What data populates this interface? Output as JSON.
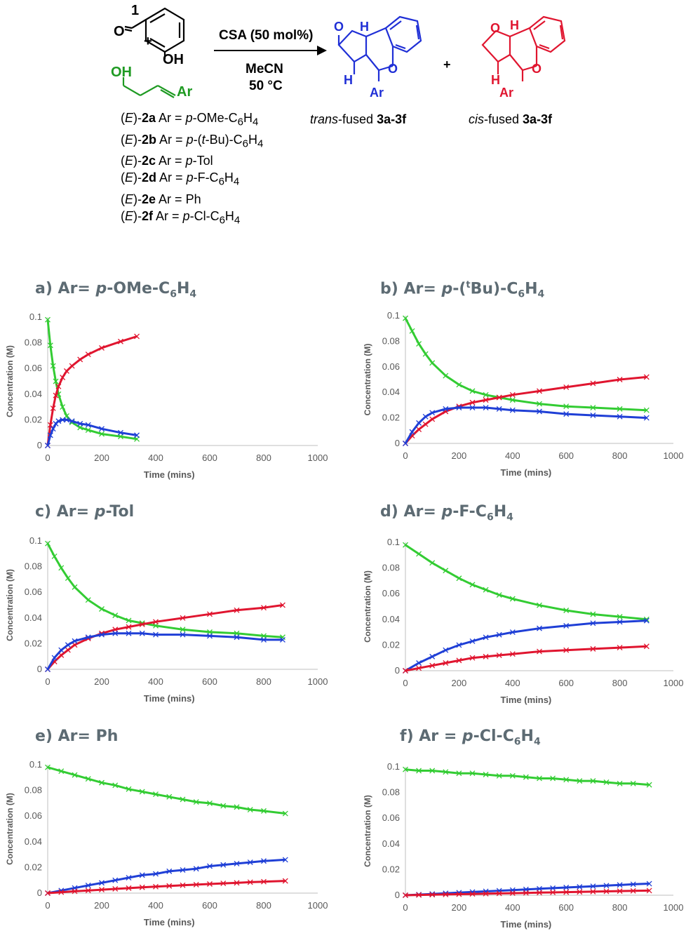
{
  "scheme": {
    "label_1": "1",
    "aldehyde_O": "O",
    "phenol_OH": "OH",
    "plus_1": "+",
    "alcohol_OH": "OH",
    "alcohol_Ar": "Ar",
    "reagent": "CSA (50 mol%)",
    "solvent": "MeCN",
    "temp": "50 °C",
    "plus_2": "+",
    "trans_label_italic": "trans",
    "trans_label_rest": "-fused ",
    "trans_label_bold": "3a-3f",
    "cis_label_italic": "cis",
    "cis_label_rest": "-fused ",
    "cis_label_bold": "3a-3f",
    "substrates": [
      {
        "pre": "(",
        "E": "E",
        "mid": ")-",
        "id": "2a",
        "ar": " Ar = ",
        "ital": "p",
        "rest": "-OMe-C",
        "sub": "6",
        "rest2": "H",
        "sub2": "4"
      },
      {
        "pre": "(",
        "E": "E",
        "mid": ")-",
        "id": "2b",
        "ar": " Ar = ",
        "ital": "p",
        "rest": "-(",
        "ital2": "t",
        "rest1b": "-Bu)-C",
        "sub": "6",
        "rest2": "H",
        "sub2": "4"
      },
      {
        "pre": "(",
        "E": "E",
        "mid": ")-",
        "id": "2c",
        "ar": " Ar = ",
        "ital": "p",
        "rest": "-Tol"
      },
      {
        "pre": "(",
        "E": "E",
        "mid": ")-",
        "id": "2d",
        "ar": " Ar = ",
        "ital": "p",
        "rest": "-F-C",
        "sub": "6",
        "rest2": "H",
        "sub2": "4"
      },
      {
        "pre": "(",
        "E": "E",
        "mid": ")-",
        "id": "2e",
        "ar": " Ar = ",
        "rest": "Ph"
      },
      {
        "pre": "(",
        "E": "E",
        "mid": ")-",
        "id": "2f",
        "ar": " Ar = ",
        "ital": "p",
        "rest": "-Cl-C",
        "sub": "6",
        "rest2": "H",
        "sub2": "4"
      }
    ],
    "trans_atoms": {
      "O1": "O",
      "H1": "H",
      "O2": "O",
      "H2": "H",
      "Ar": "Ar"
    },
    "cis_atoms": {
      "O1": "O",
      "H1": "H",
      "O2": "O",
      "H2": "H",
      "Ar": "Ar"
    },
    "colors": {
      "trans": "#1f2fd6",
      "cis": "#e0152f",
      "alcohol": "#1e9a22"
    }
  },
  "chart_data": [
    {
      "panel": "a",
      "title_pre": "a) Ar= ",
      "title_ital": "p",
      "title_rest": "-OMe-C",
      "title_sub1": "6",
      "title_mid": "H",
      "title_sub2": "4",
      "type": "scatter",
      "xlabel": "Time (mins)",
      "ylabel": "Concentration (M)",
      "xlim": [
        0,
        1000
      ],
      "ylim": [
        0,
        0.1
      ],
      "xticks": [
        "0",
        "200",
        "400",
        "600",
        "800",
        "1000"
      ],
      "yticks": [
        "0",
        "0.02",
        "0.04",
        "0.06",
        "0.08",
        "0.1"
      ],
      "series": [
        {
          "color": "#33cc33",
          "x": [
            0,
            10,
            20,
            30,
            40,
            55,
            70,
            90,
            120,
            150,
            200,
            270,
            330
          ],
          "y": [
            0.098,
            0.078,
            0.062,
            0.05,
            0.04,
            0.03,
            0.023,
            0.018,
            0.014,
            0.012,
            0.009,
            0.007,
            0.005
          ]
        },
        {
          "color": "#e0152f",
          "x": [
            0,
            10,
            20,
            30,
            40,
            55,
            70,
            90,
            120,
            150,
            200,
            270,
            330
          ],
          "y": [
            0.0,
            0.016,
            0.029,
            0.039,
            0.046,
            0.053,
            0.058,
            0.062,
            0.067,
            0.071,
            0.076,
            0.081,
            0.085
          ]
        },
        {
          "color": "#1f3fd6",
          "x": [
            0,
            10,
            20,
            30,
            40,
            55,
            70,
            90,
            120,
            150,
            200,
            270,
            330
          ],
          "y": [
            0.0,
            0.008,
            0.013,
            0.017,
            0.019,
            0.02,
            0.02,
            0.019,
            0.017,
            0.016,
            0.013,
            0.01,
            0.008
          ]
        }
      ]
    },
    {
      "panel": "b",
      "title_pre": "b) Ar= ",
      "title_ital": "p",
      "title_rest": "-(",
      "title_sup": "t",
      "title_rest2": "Bu)-C",
      "title_sub1": "6",
      "title_mid": "H",
      "title_sub2": "4",
      "type": "scatter",
      "xlabel": "Time (mins)",
      "ylabel": "Concentration (M)",
      "xlim": [
        0,
        1000
      ],
      "ylim": [
        0,
        0.1
      ],
      "xticks": [
        "0",
        "200",
        "400",
        "600",
        "800",
        "1000"
      ],
      "yticks": [
        "0",
        "0.02",
        "0.04",
        "0.06",
        "0.08",
        "0.1"
      ],
      "series": [
        {
          "color": "#33cc33",
          "x": [
            0,
            25,
            50,
            75,
            100,
            150,
            200,
            250,
            300,
            350,
            400,
            500,
            600,
            700,
            800,
            900
          ],
          "y": [
            0.098,
            0.088,
            0.078,
            0.07,
            0.063,
            0.053,
            0.046,
            0.041,
            0.038,
            0.036,
            0.034,
            0.031,
            0.029,
            0.028,
            0.027,
            0.026
          ]
        },
        {
          "color": "#e0152f",
          "x": [
            0,
            25,
            50,
            75,
            100,
            150,
            200,
            250,
            300,
            350,
            400,
            500,
            600,
            700,
            800,
            900
          ],
          "y": [
            0.0,
            0.006,
            0.011,
            0.015,
            0.019,
            0.025,
            0.029,
            0.032,
            0.034,
            0.036,
            0.038,
            0.041,
            0.044,
            0.047,
            0.05,
            0.052
          ]
        },
        {
          "color": "#1f3fd6",
          "x": [
            0,
            25,
            50,
            75,
            100,
            150,
            200,
            250,
            300,
            350,
            400,
            500,
            600,
            700,
            800,
            900
          ],
          "y": [
            0.0,
            0.009,
            0.016,
            0.021,
            0.024,
            0.027,
            0.028,
            0.028,
            0.028,
            0.027,
            0.026,
            0.025,
            0.023,
            0.022,
            0.021,
            0.02
          ]
        }
      ]
    },
    {
      "panel": "c",
      "title_pre": "c) Ar= ",
      "title_ital": "p",
      "title_rest": "-Tol",
      "type": "scatter",
      "xlabel": "Time (mins)",
      "ylabel": "Concentration (M)",
      "xlim": [
        0,
        1000
      ],
      "ylim": [
        0,
        0.1
      ],
      "xticks": [
        "0",
        "200",
        "400",
        "600",
        "800",
        "1000"
      ],
      "yticks": [
        "0",
        "0.02",
        "0.04",
        "0.06",
        "0.08",
        "0.1"
      ],
      "series": [
        {
          "color": "#33cc33",
          "x": [
            0,
            25,
            50,
            75,
            100,
            150,
            200,
            250,
            300,
            350,
            400,
            500,
            600,
            700,
            800,
            870
          ],
          "y": [
            0.098,
            0.088,
            0.079,
            0.071,
            0.064,
            0.054,
            0.047,
            0.042,
            0.038,
            0.036,
            0.034,
            0.031,
            0.029,
            0.028,
            0.026,
            0.025
          ]
        },
        {
          "color": "#e0152f",
          "x": [
            0,
            25,
            50,
            75,
            100,
            150,
            200,
            250,
            300,
            350,
            400,
            500,
            600,
            700,
            800,
            870
          ],
          "y": [
            0.0,
            0.006,
            0.011,
            0.015,
            0.019,
            0.024,
            0.028,
            0.031,
            0.033,
            0.035,
            0.037,
            0.04,
            0.043,
            0.046,
            0.048,
            0.05
          ]
        },
        {
          "color": "#1f3fd6",
          "x": [
            0,
            25,
            50,
            75,
            100,
            150,
            200,
            250,
            300,
            350,
            400,
            500,
            600,
            700,
            800,
            870
          ],
          "y": [
            0.0,
            0.009,
            0.015,
            0.019,
            0.022,
            0.025,
            0.027,
            0.028,
            0.028,
            0.028,
            0.027,
            0.027,
            0.026,
            0.025,
            0.023,
            0.023
          ]
        }
      ]
    },
    {
      "panel": "d",
      "title_pre": "d) Ar= ",
      "title_ital": "p",
      "title_rest": "-F-C",
      "title_sub1": "6",
      "title_mid": "H",
      "title_sub2": "4",
      "type": "scatter",
      "xlabel": "Time (mins)",
      "ylabel": "Concentration (M)",
      "xlim": [
        0,
        1000
      ],
      "ylim": [
        0,
        0.1
      ],
      "xticks": [
        "0",
        "200",
        "400",
        "600",
        "800",
        "1000"
      ],
      "yticks": [
        "0",
        "0.02",
        "0.04",
        "0.06",
        "0.08",
        "0.1"
      ],
      "series": [
        {
          "color": "#33cc33",
          "x": [
            0,
            50,
            100,
            150,
            200,
            250,
            300,
            350,
            400,
            500,
            600,
            700,
            800,
            900
          ],
          "y": [
            0.098,
            0.091,
            0.084,
            0.078,
            0.072,
            0.067,
            0.063,
            0.059,
            0.056,
            0.051,
            0.047,
            0.044,
            0.042,
            0.04
          ]
        },
        {
          "color": "#1f3fd6",
          "x": [
            0,
            50,
            100,
            150,
            200,
            250,
            300,
            350,
            400,
            500,
            600,
            700,
            800,
            900
          ],
          "y": [
            0.0,
            0.006,
            0.011,
            0.016,
            0.02,
            0.023,
            0.026,
            0.028,
            0.03,
            0.033,
            0.035,
            0.037,
            0.038,
            0.039
          ]
        },
        {
          "color": "#e0152f",
          "x": [
            0,
            50,
            100,
            150,
            200,
            250,
            300,
            350,
            400,
            500,
            600,
            700,
            800,
            900
          ],
          "y": [
            0.0,
            0.002,
            0.004,
            0.006,
            0.008,
            0.01,
            0.011,
            0.012,
            0.013,
            0.015,
            0.016,
            0.017,
            0.018,
            0.019
          ]
        }
      ]
    },
    {
      "panel": "e",
      "title_pre": "e) Ar= ",
      "title_rest": "Ph",
      "type": "scatter",
      "xlabel": "Time (mins)",
      "ylabel": "Concentration (M)",
      "xlim": [
        0,
        1000
      ],
      "ylim": [
        0,
        0.1
      ],
      "xticks": [
        "0",
        "200",
        "400",
        "600",
        "800",
        "1000"
      ],
      "yticks": [
        "0",
        "0.02",
        "0.04",
        "0.06",
        "0.08",
        "0.1"
      ],
      "series": [
        {
          "color": "#33cc33",
          "x": [
            0,
            50,
            100,
            150,
            200,
            250,
            300,
            350,
            400,
            450,
            500,
            550,
            600,
            650,
            700,
            750,
            800,
            880
          ],
          "y": [
            0.098,
            0.095,
            0.092,
            0.089,
            0.086,
            0.084,
            0.081,
            0.079,
            0.077,
            0.075,
            0.073,
            0.071,
            0.07,
            0.068,
            0.067,
            0.065,
            0.064,
            0.062
          ]
        },
        {
          "color": "#1f3fd6",
          "x": [
            0,
            50,
            100,
            150,
            200,
            250,
            300,
            350,
            400,
            450,
            500,
            550,
            600,
            650,
            700,
            750,
            800,
            880
          ],
          "y": [
            0.0,
            0.002,
            0.004,
            0.006,
            0.008,
            0.01,
            0.012,
            0.014,
            0.015,
            0.017,
            0.018,
            0.019,
            0.021,
            0.022,
            0.023,
            0.024,
            0.025,
            0.026
          ]
        },
        {
          "color": "#e0152f",
          "x": [
            0,
            50,
            100,
            150,
            200,
            250,
            300,
            350,
            400,
            450,
            500,
            550,
            600,
            650,
            700,
            750,
            800,
            880
          ],
          "y": [
            0.0,
            0.0007,
            0.0014,
            0.002,
            0.0027,
            0.0033,
            0.0039,
            0.0045,
            0.005,
            0.0056,
            0.0061,
            0.0066,
            0.0071,
            0.0076,
            0.008,
            0.0085,
            0.0089,
            0.0095
          ]
        }
      ]
    },
    {
      "panel": "f",
      "title_pre": "f) Ar = ",
      "title_ital": "p",
      "title_rest": "-Cl-C",
      "title_sub1": "6",
      "title_mid": "H",
      "title_sub2": "4",
      "type": "scatter",
      "xlabel": "Time (mins)",
      "ylabel": "Concentration (M)",
      "xlim": [
        0,
        1000
      ],
      "ylim": [
        0,
        0.1
      ],
      "xticks": [
        "0",
        "200",
        "400",
        "600",
        "800",
        "1000"
      ],
      "yticks": [
        "0",
        "0.02",
        "0.04",
        "0.06",
        "0.08",
        "0.1"
      ],
      "series": [
        {
          "color": "#33cc33",
          "x": [
            0,
            50,
            100,
            150,
            200,
            250,
            300,
            350,
            400,
            450,
            500,
            550,
            600,
            650,
            700,
            750,
            800,
            850,
            910
          ],
          "y": [
            0.098,
            0.097,
            0.097,
            0.096,
            0.095,
            0.095,
            0.094,
            0.093,
            0.093,
            0.092,
            0.091,
            0.091,
            0.09,
            0.089,
            0.089,
            0.088,
            0.087,
            0.087,
            0.086
          ]
        },
        {
          "color": "#1f3fd6",
          "x": [
            0,
            50,
            100,
            150,
            200,
            250,
            300,
            350,
            400,
            450,
            500,
            550,
            600,
            650,
            700,
            750,
            800,
            850,
            910
          ],
          "y": [
            0.0,
            0.0005,
            0.001,
            0.0015,
            0.002,
            0.0025,
            0.003,
            0.0035,
            0.004,
            0.0045,
            0.005,
            0.0055,
            0.006,
            0.0065,
            0.007,
            0.0075,
            0.008,
            0.0085,
            0.009
          ]
        },
        {
          "color": "#e0152f",
          "x": [
            0,
            50,
            100,
            150,
            200,
            250,
            300,
            350,
            400,
            450,
            500,
            550,
            600,
            650,
            700,
            750,
            800,
            850,
            910
          ],
          "y": [
            0.0,
            0.0002,
            0.0004,
            0.0006,
            0.0008,
            0.001,
            0.0012,
            0.0014,
            0.0016,
            0.0018,
            0.002,
            0.0022,
            0.0024,
            0.0026,
            0.0028,
            0.003,
            0.0032,
            0.0034,
            0.0036
          ]
        }
      ]
    }
  ]
}
